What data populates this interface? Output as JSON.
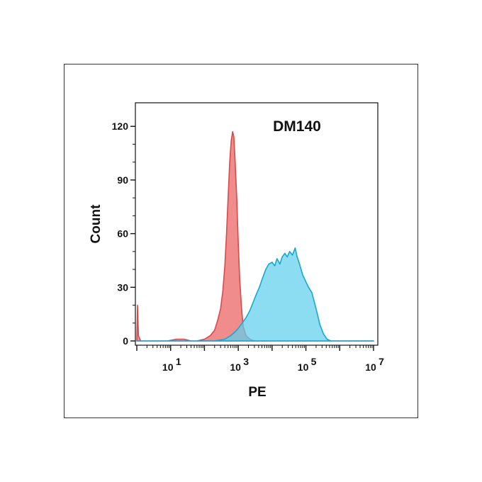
{
  "chart_data": {
    "type": "area",
    "title": "DM140",
    "xlabel": "PE",
    "ylabel": "Count",
    "x_scale": "log10",
    "xlim": [
      1,
      10000000
    ],
    "ylim": [
      0,
      130
    ],
    "x_ticks": [
      {
        "value": 10,
        "base": "10",
        "exp": "1"
      },
      {
        "value": 1000,
        "base": "10",
        "exp": "3"
      },
      {
        "value": 100000,
        "base": "10",
        "exp": "5"
      },
      {
        "value": 10000000,
        "base": "10",
        "exp": "7"
      }
    ],
    "y_ticks": [
      {
        "value": 0,
        "label": "0"
      },
      {
        "value": 30,
        "label": "30"
      },
      {
        "value": 60,
        "label": "60"
      },
      {
        "value": 90,
        "label": "90"
      },
      {
        "value": 120,
        "label": "120"
      }
    ],
    "grid": false,
    "series": [
      {
        "color": "#f08080",
        "stroke": "#d94a4a",
        "points": [
          [
            1.0,
            0
          ],
          [
            1.05,
            20
          ],
          [
            1.12,
            3
          ],
          [
            1.3,
            0
          ],
          [
            3,
            0
          ],
          [
            8,
            0
          ],
          [
            15,
            1
          ],
          [
            25,
            1
          ],
          [
            40,
            0
          ],
          [
            60,
            0
          ],
          [
            100,
            1
          ],
          [
            150,
            3
          ],
          [
            200,
            6
          ],
          [
            250,
            12
          ],
          [
            300,
            18
          ],
          [
            350,
            28
          ],
          [
            400,
            42
          ],
          [
            450,
            60
          ],
          [
            500,
            80
          ],
          [
            560,
            100
          ],
          [
            620,
            112
          ],
          [
            680,
            117
          ],
          [
            740,
            114
          ],
          [
            800,
            102
          ],
          [
            900,
            80
          ],
          [
            1000,
            55
          ],
          [
            1100,
            35
          ],
          [
            1250,
            18
          ],
          [
            1400,
            8
          ],
          [
            1700,
            3
          ],
          [
            2200,
            1
          ],
          [
            3000,
            0
          ],
          [
            10000,
            0
          ],
          [
            10000000,
            0
          ]
        ]
      },
      {
        "color": "#5fd0ec",
        "stroke": "#1aa6cf",
        "points": [
          [
            1.0,
            0
          ],
          [
            10,
            0
          ],
          [
            200,
            0
          ],
          [
            400,
            1
          ],
          [
            600,
            3
          ],
          [
            800,
            5
          ],
          [
            1000,
            7
          ],
          [
            1300,
            10
          ],
          [
            1700,
            13
          ],
          [
            2200,
            17
          ],
          [
            2800,
            22
          ],
          [
            3400,
            26
          ],
          [
            4200,
            30
          ],
          [
            5200,
            35
          ],
          [
            6500,
            40
          ],
          [
            8000,
            43
          ],
          [
            10000,
            44
          ],
          [
            12000,
            42
          ],
          [
            14000,
            46
          ],
          [
            17000,
            43
          ],
          [
            20000,
            47
          ],
          [
            24000,
            49
          ],
          [
            28000,
            47
          ],
          [
            33000,
            50
          ],
          [
            40000,
            48
          ],
          [
            48000,
            52
          ],
          [
            55000,
            47
          ],
          [
            65000,
            43
          ],
          [
            80000,
            37
          ],
          [
            100000,
            33
          ],
          [
            120000,
            30
          ],
          [
            150000,
            27
          ],
          [
            200000,
            18
          ],
          [
            260000,
            9
          ],
          [
            330000,
            4
          ],
          [
            420000,
            1
          ],
          [
            550000,
            0
          ],
          [
            10000000,
            0
          ]
        ]
      }
    ]
  }
}
